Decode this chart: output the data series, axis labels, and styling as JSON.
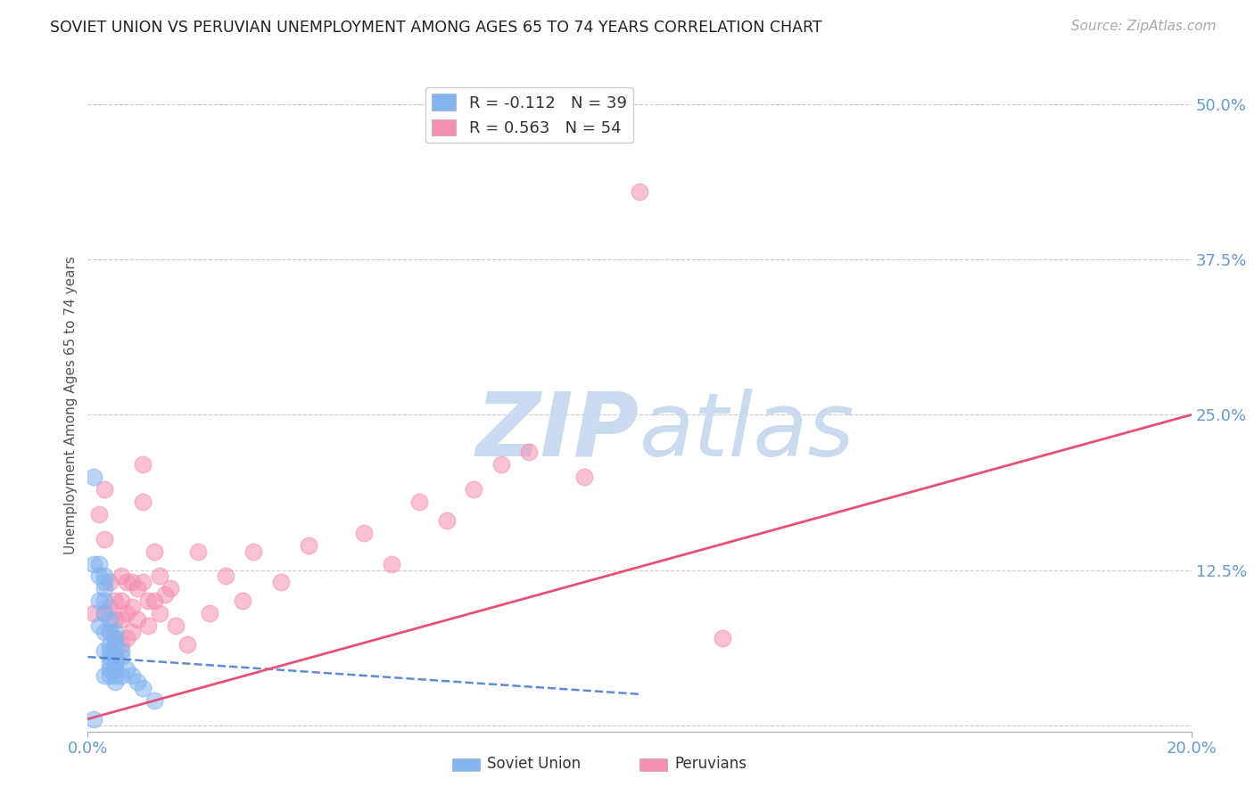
{
  "title": "SOVIET UNION VS PERUVIAN UNEMPLOYMENT AMONG AGES 65 TO 74 YEARS CORRELATION CHART",
  "source": "Source: ZipAtlas.com",
  "ylabel": "Unemployment Among Ages 65 to 74 years",
  "xlim": [
    0.0,
    0.2
  ],
  "ylim": [
    -0.005,
    0.52
  ],
  "xtick_positions": [
    0.0,
    0.2
  ],
  "xtick_labels": [
    "0.0%",
    "20.0%"
  ],
  "ytick_positions": [
    0.125,
    0.25,
    0.375,
    0.5
  ],
  "ytick_labels": [
    "12.5%",
    "25.0%",
    "37.5%",
    "50.0%"
  ],
  "grid_yticks": [
    0.0,
    0.125,
    0.25,
    0.375,
    0.5
  ],
  "legend_soviet_R": -0.112,
  "legend_soviet_N": 39,
  "legend_peruvian_R": 0.563,
  "legend_peruvian_N": 54,
  "soviet_color": "#82b4f0",
  "peruvian_color": "#f48fb1",
  "soviet_line_color": "#4477cc",
  "peruvian_line_color": "#e8507a",
  "background_color": "#ffffff",
  "grid_color": "#cccccc",
  "title_color": "#222222",
  "axis_label_color": "#555555",
  "tick_color": "#6699cc",
  "watermark_color": "#c5d8ee",
  "soviet_x": [
    0.001,
    0.001,
    0.001,
    0.002,
    0.002,
    0.002,
    0.002,
    0.003,
    0.003,
    0.003,
    0.003,
    0.003,
    0.003,
    0.003,
    0.003,
    0.004,
    0.004,
    0.004,
    0.004,
    0.004,
    0.004,
    0.004,
    0.004,
    0.005,
    0.005,
    0.005,
    0.005,
    0.005,
    0.005,
    0.005,
    0.005,
    0.006,
    0.006,
    0.006,
    0.007,
    0.008,
    0.009,
    0.01,
    0.012
  ],
  "soviet_y": [
    0.2,
    0.13,
    0.005,
    0.13,
    0.12,
    0.1,
    0.08,
    0.12,
    0.115,
    0.11,
    0.1,
    0.09,
    0.075,
    0.06,
    0.04,
    0.085,
    0.075,
    0.065,
    0.06,
    0.055,
    0.05,
    0.045,
    0.04,
    0.075,
    0.07,
    0.065,
    0.055,
    0.05,
    0.045,
    0.04,
    0.035,
    0.06,
    0.055,
    0.04,
    0.045,
    0.04,
    0.035,
    0.03,
    0.02
  ],
  "peruvian_x": [
    0.001,
    0.002,
    0.003,
    0.003,
    0.003,
    0.004,
    0.004,
    0.004,
    0.005,
    0.005,
    0.005,
    0.005,
    0.006,
    0.006,
    0.006,
    0.006,
    0.007,
    0.007,
    0.007,
    0.008,
    0.008,
    0.008,
    0.009,
    0.009,
    0.01,
    0.01,
    0.01,
    0.011,
    0.011,
    0.012,
    0.012,
    0.013,
    0.013,
    0.014,
    0.015,
    0.016,
    0.018,
    0.02,
    0.022,
    0.025,
    0.028,
    0.03,
    0.035,
    0.04,
    0.05,
    0.055,
    0.06,
    0.065,
    0.07,
    0.075,
    0.08,
    0.09,
    0.1,
    0.115
  ],
  "peruvian_y": [
    0.09,
    0.17,
    0.19,
    0.15,
    0.09,
    0.115,
    0.095,
    0.075,
    0.1,
    0.085,
    0.07,
    0.055,
    0.12,
    0.1,
    0.085,
    0.065,
    0.115,
    0.09,
    0.07,
    0.115,
    0.095,
    0.075,
    0.11,
    0.085,
    0.21,
    0.18,
    0.115,
    0.1,
    0.08,
    0.14,
    0.1,
    0.12,
    0.09,
    0.105,
    0.11,
    0.08,
    0.065,
    0.14,
    0.09,
    0.12,
    0.1,
    0.14,
    0.115,
    0.145,
    0.155,
    0.13,
    0.18,
    0.165,
    0.19,
    0.21,
    0.22,
    0.2,
    0.43,
    0.07
  ],
  "soviet_trend_x": [
    0.0,
    0.1
  ],
  "soviet_trend_y": [
    0.055,
    0.025
  ],
  "peruvian_trend_x": [
    0.0,
    0.2
  ],
  "peruvian_trend_y": [
    0.005,
    0.25
  ]
}
